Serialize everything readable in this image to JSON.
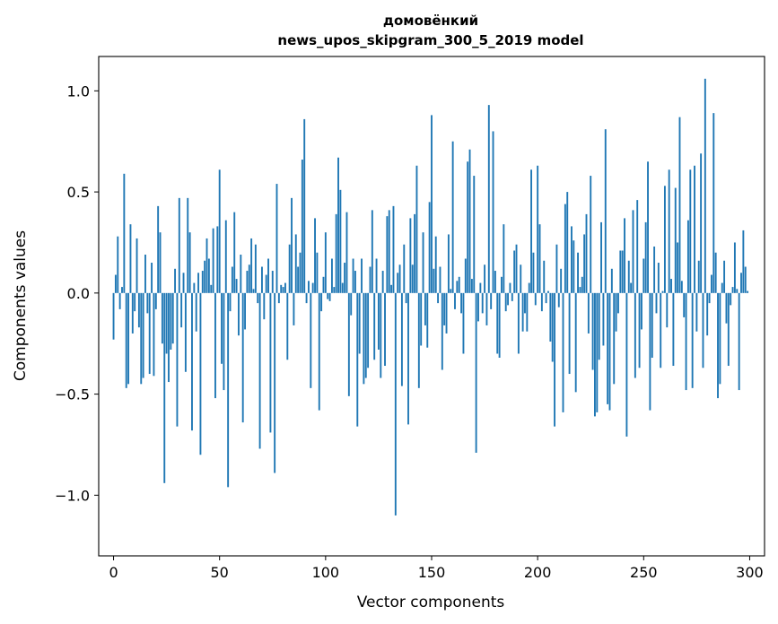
{
  "chart_data": {
    "type": "bar",
    "title": "домовёнкий",
    "subtitle": "news_upos_skipgram_300_5_2019 model",
    "xlabel": "Vector components",
    "ylabel": "Components values",
    "xlim": [
      -7,
      307
    ],
    "ylim": [
      -1.3,
      1.17
    ],
    "xticks": [
      0,
      50,
      100,
      150,
      200,
      250,
      300
    ],
    "xtick_labels": [
      "0",
      "50",
      "100",
      "150",
      "200",
      "250",
      "300"
    ],
    "yticks": [
      -1.0,
      -0.5,
      0.0,
      0.5,
      1.0
    ],
    "ytick_labels": [
      "−1.0",
      "−0.5",
      "0.0",
      "0.5",
      "1.0"
    ],
    "bar_color": "#1f77b4",
    "grid": false,
    "x": [
      0,
      1,
      2,
      3,
      4,
      5,
      6,
      7,
      8,
      9,
      10,
      11,
      12,
      13,
      14,
      15,
      16,
      17,
      18,
      19,
      20,
      21,
      22,
      23,
      24,
      25,
      26,
      27,
      28,
      29,
      30,
      31,
      32,
      33,
      34,
      35,
      36,
      37,
      38,
      39,
      40,
      41,
      42,
      43,
      44,
      45,
      46,
      47,
      48,
      49,
      50,
      51,
      52,
      53,
      54,
      55,
      56,
      57,
      58,
      59,
      60,
      61,
      62,
      63,
      64,
      65,
      66,
      67,
      68,
      69,
      70,
      71,
      72,
      73,
      74,
      75,
      76,
      77,
      78,
      79,
      80,
      81,
      82,
      83,
      84,
      85,
      86,
      87,
      88,
      89,
      90,
      91,
      92,
      93,
      94,
      95,
      96,
      97,
      98,
      99,
      100,
      101,
      102,
      103,
      104,
      105,
      106,
      107,
      108,
      109,
      110,
      111,
      112,
      113,
      114,
      115,
      116,
      117,
      118,
      119,
      120,
      121,
      122,
      123,
      124,
      125,
      126,
      127,
      128,
      129,
      130,
      131,
      132,
      133,
      134,
      135,
      136,
      137,
      138,
      139,
      140,
      141,
      142,
      143,
      144,
      145,
      146,
      147,
      148,
      149,
      150,
      151,
      152,
      153,
      154,
      155,
      156,
      157,
      158,
      159,
      160,
      161,
      162,
      163,
      164,
      165,
      166,
      167,
      168,
      169,
      170,
      171,
      172,
      173,
      174,
      175,
      176,
      177,
      178,
      179,
      180,
      181,
      182,
      183,
      184,
      185,
      186,
      187,
      188,
      189,
      190,
      191,
      192,
      193,
      194,
      195,
      196,
      197,
      198,
      199,
      200,
      201,
      202,
      203,
      204,
      205,
      206,
      207,
      208,
      209,
      210,
      211,
      212,
      213,
      214,
      215,
      216,
      217,
      218,
      219,
      220,
      221,
      222,
      223,
      224,
      225,
      226,
      227,
      228,
      229,
      230,
      231,
      232,
      233,
      234,
      235,
      236,
      237,
      238,
      239,
      240,
      241,
      242,
      243,
      244,
      245,
      246,
      247,
      248,
      249,
      250,
      251,
      252,
      253,
      254,
      255,
      256,
      257,
      258,
      259,
      260,
      261,
      262,
      263,
      264,
      265,
      266,
      267,
      268,
      269,
      270,
      271,
      272,
      273,
      274,
      275,
      276,
      277,
      278,
      279,
      280,
      281,
      282,
      283,
      284,
      285,
      286,
      287,
      288,
      289,
      290,
      291,
      292,
      293,
      294,
      295,
      296,
      297,
      298,
      299
    ],
    "values": [
      -0.23,
      0.09,
      0.28,
      -0.08,
      0.03,
      0.59,
      -0.47,
      -0.45,
      0.34,
      -0.2,
      -0.09,
      0.27,
      -0.17,
      -0.45,
      -0.42,
      0.19,
      -0.1,
      -0.4,
      0.15,
      -0.41,
      -0.08,
      0.43,
      0.3,
      -0.25,
      -0.94,
      -0.3,
      -0.44,
      -0.28,
      -0.25,
      0.12,
      -0.66,
      0.47,
      -0.17,
      0.1,
      -0.39,
      0.47,
      0.3,
      -0.68,
      0.05,
      -0.19,
      0.1,
      -0.8,
      0.11,
      0.16,
      0.27,
      0.17,
      0.04,
      0.32,
      -0.52,
      0.33,
      0.61,
      -0.35,
      -0.48,
      0.36,
      -0.96,
      -0.09,
      0.13,
      0.4,
      0.07,
      -0.21,
      0.19,
      -0.64,
      -0.18,
      0.11,
      0.14,
      0.27,
      0.02,
      0.24,
      -0.05,
      -0.77,
      0.13,
      -0.13,
      0.09,
      0.17,
      -0.69,
      0.11,
      -0.89,
      0.54,
      -0.05,
      0.04,
      0.03,
      0.05,
      -0.33,
      0.24,
      0.47,
      -0.16,
      0.29,
      0.13,
      0.2,
      0.66,
      0.86,
      -0.05,
      0.06,
      -0.47,
      0.05,
      0.37,
      0.2,
      -0.58,
      -0.09,
      0.08,
      0.3,
      -0.03,
      -0.04,
      0.17,
      0.03,
      0.39,
      0.67,
      0.51,
      0.05,
      0.15,
      0.4,
      -0.51,
      -0.11,
      0.17,
      0.11,
      -0.66,
      -0.3,
      0.17,
      -0.45,
      -0.42,
      -0.37,
      0.13,
      0.41,
      -0.33,
      0.17,
      -0.28,
      -0.42,
      0.11,
      -0.36,
      0.38,
      0.41,
      0.04,
      0.43,
      -1.1,
      0.1,
      0.14,
      -0.46,
      0.24,
      -0.05,
      -0.65,
      0.37,
      0.14,
      0.39,
      0.63,
      -0.47,
      -0.26,
      0.3,
      -0.16,
      -0.27,
      0.45,
      0.88,
      0.12,
      0.28,
      -0.05,
      0.13,
      -0.38,
      -0.16,
      -0.2,
      0.29,
      0.02,
      0.75,
      -0.08,
      0.06,
      0.08,
      -0.1,
      -0.3,
      0.17,
      0.65,
      0.71,
      0.07,
      0.58,
      -0.79,
      -0.14,
      0.05,
      -0.1,
      0.14,
      -0.16,
      0.93,
      -0.08,
      0.8,
      0.11,
      -0.3,
      -0.32,
      0.08,
      0.34,
      -0.09,
      -0.06,
      0.05,
      -0.04,
      0.21,
      0.24,
      -0.3,
      0.14,
      -0.19,
      -0.1,
      -0.19,
      0.05,
      0.61,
      0.2,
      -0.06,
      0.63,
      0.34,
      -0.09,
      0.16,
      -0.05,
      0.01,
      -0.24,
      -0.34,
      -0.66,
      0.24,
      -0.07,
      0.12,
      -0.59,
      0.44,
      0.5,
      -0.4,
      0.33,
      0.26,
      -0.49,
      0.2,
      0.03,
      0.08,
      0.29,
      0.39,
      -0.2,
      0.58,
      -0.38,
      -0.61,
      -0.59,
      -0.33,
      0.35,
      -0.26,
      0.81,
      -0.55,
      -0.58,
      0.12,
      -0.45,
      -0.19,
      -0.1,
      0.21,
      0.21,
      0.37,
      -0.71,
      0.16,
      0.05,
      0.41,
      -0.42,
      0.46,
      -0.37,
      -0.18,
      0.17,
      0.35,
      0.65,
      -0.58,
      -0.32,
      0.23,
      -0.1,
      0.15,
      -0.37,
      0.01,
      0.53,
      -0.17,
      0.61,
      0.07,
      -0.36,
      0.52,
      0.25,
      0.87,
      0.06,
      -0.12,
      -0.48,
      0.36,
      0.61,
      -0.47,
      0.63,
      -0.19,
      0.16,
      0.69,
      -0.37,
      1.06,
      -0.21,
      -0.05,
      0.09,
      0.89,
      0.2,
      -0.52,
      -0.45,
      0.05,
      0.16,
      -0.15,
      -0.36,
      -0.06,
      0.03,
      0.25,
      0.02,
      -0.48,
      0.1,
      0.31,
      0.13,
      0.01
    ]
  }
}
